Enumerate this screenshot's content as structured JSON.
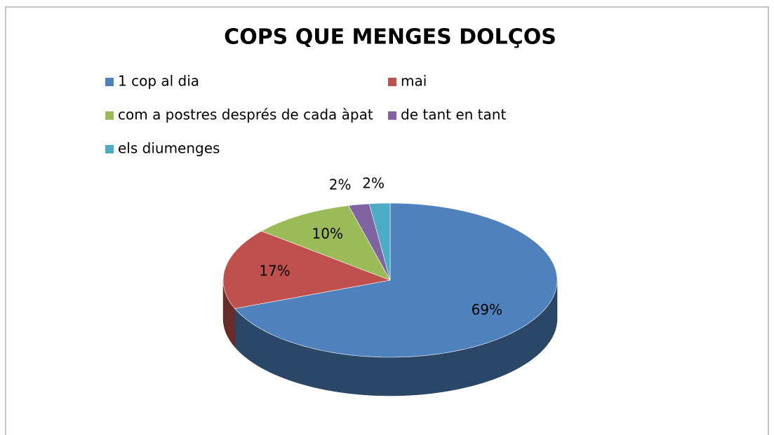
{
  "chart_data": {
    "type": "pie",
    "title": "COPS QUE MENGES DOLÇOS",
    "categories": [
      "1 cop al dia",
      "mai",
      "com a postres després de cada àpat",
      "de tant en tant",
      "els diumenges"
    ],
    "values": [
      69,
      17,
      10,
      2,
      2
    ],
    "value_labels": [
      "69%",
      "17%",
      "10%",
      "2%",
      "2%"
    ],
    "colors": [
      "#4f81bd",
      "#c0504d",
      "#9bbb59",
      "#8064a2",
      "#4bacc6"
    ],
    "legend": "top"
  }
}
